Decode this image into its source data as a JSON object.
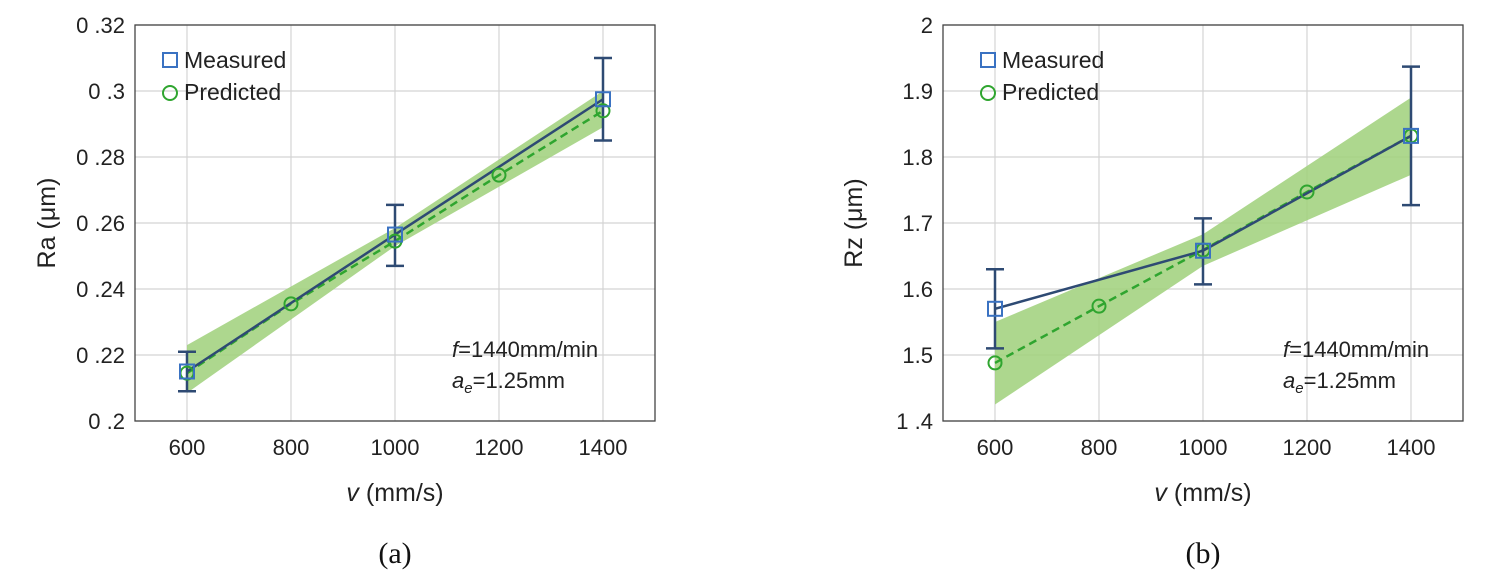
{
  "chart_data": [
    {
      "type": "line",
      "panel_label": "(a)",
      "ylabel_main": "Ra",
      "ylabel_unit": "(μm)",
      "xlabel_var": "v",
      "xlabel_unit": "(mm/s)",
      "xlim": [
        500,
        1500
      ],
      "ylim": [
        0.2,
        0.32
      ],
      "xticks": [
        600,
        800,
        1000,
        1200,
        1400
      ],
      "xtick_labels": [
        "600",
        "800",
        "1000",
        "1200",
        "1400"
      ],
      "yticks": [
        0.2,
        0.22,
        0.24,
        0.26,
        0.28,
        0.3,
        0.32
      ],
      "ytick_labels": [
        "0 .2",
        "0 .22",
        "0 .24",
        "0 .26",
        "0 .28",
        "0 .3",
        "0 .32"
      ],
      "grid": true,
      "legend_position": "top-left",
      "colors": {
        "measured": "#2e4a73",
        "marker_measured": "#3a72c2",
        "predicted": "#2fa52f",
        "band": "#9fd07a"
      },
      "series": [
        {
          "name": "Measured",
          "x": [
            600,
            1000,
            1400
          ],
          "y": [
            0.215,
            0.2565,
            0.2975
          ],
          "err_low": [
            0.209,
            0.247,
            0.285
          ],
          "err_high": [
            0.221,
            0.2655,
            0.31
          ]
        },
        {
          "name": "Predicted",
          "x": [
            600,
            800,
            1000,
            1200,
            1400
          ],
          "y": [
            0.2145,
            0.2355,
            0.2545,
            0.2745,
            0.294
          ]
        }
      ],
      "band": {
        "x": [
          600,
          1000,
          1400
        ],
        "lower": [
          0.2085,
          0.253,
          0.289
        ],
        "upper": [
          0.223,
          0.2585,
          0.3
        ]
      },
      "annotation": {
        "f_symbol": "f",
        "f_text": "=1440mm/min",
        "ae_symbol": "a",
        "ae_sub": "e",
        "ae_text": "=1.25mm"
      }
    },
    {
      "type": "line",
      "panel_label": "(b)",
      "ylabel_main": "Rz",
      "ylabel_unit": "(μm)",
      "xlabel_var": "v",
      "xlabel_unit": "(mm/s)",
      "xlim": [
        500,
        1500
      ],
      "ylim": [
        1.4,
        2.0
      ],
      "xticks": [
        600,
        800,
        1000,
        1200,
        1400
      ],
      "xtick_labels": [
        "600",
        "800",
        "1000",
        "1200",
        "1400"
      ],
      "yticks": [
        1.4,
        1.5,
        1.6,
        1.7,
        1.8,
        1.9,
        2.0
      ],
      "ytick_labels": [
        "1 .4",
        "1.5",
        "1.6",
        "1.7",
        "1.8",
        "1.9",
        "2"
      ],
      "grid": true,
      "legend_position": "top-left",
      "colors": {
        "measured": "#2e4a73",
        "marker_measured": "#3a72c2",
        "predicted": "#2fa52f",
        "band": "#9fd07a"
      },
      "series": [
        {
          "name": "Measured",
          "x": [
            600,
            1000,
            1400
          ],
          "y": [
            1.57,
            1.658,
            1.832
          ],
          "err_low": [
            1.51,
            1.607,
            1.727
          ],
          "err_high": [
            1.63,
            1.707,
            1.937
          ]
        },
        {
          "name": "Predicted",
          "x": [
            600,
            800,
            1000,
            1200,
            1400
          ],
          "y": [
            1.488,
            1.574,
            1.659,
            1.747,
            1.832
          ]
        }
      ],
      "band": {
        "x": [
          600,
          1000,
          1400
        ],
        "lower": [
          1.425,
          1.635,
          1.773
        ],
        "upper": [
          1.55,
          1.683,
          1.89
        ]
      },
      "annotation": {
        "f_symbol": "f",
        "f_text": "=1440mm/min",
        "ae_symbol": "a",
        "ae_sub": "e",
        "ae_text": "=1.25mm"
      }
    }
  ]
}
